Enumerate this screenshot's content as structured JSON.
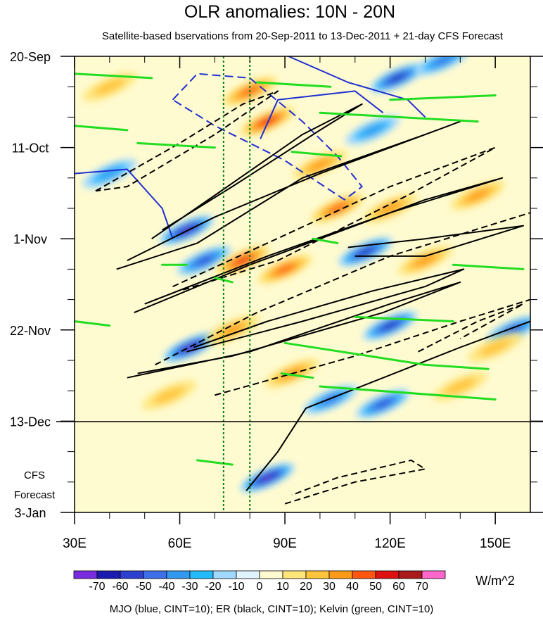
{
  "chart_data": {
    "type": "heatmap",
    "title": "OLR anomalies: 10N - 20N",
    "subtitle": "Satellite-based bservations from 20-Sep-2011 to 13-Dec-2011 + 21-day CFS Forecast",
    "xlabel": "",
    "ylabel": "",
    "x_ticks": [
      "30E",
      "60E",
      "90E",
      "120E",
      "150E"
    ],
    "x_tick_values": [
      30,
      60,
      90,
      120,
      150
    ],
    "xlim": [
      30,
      160
    ],
    "y_ticks": [
      "20-Sep",
      "11-Oct",
      "1-Nov",
      "22-Nov",
      "13-Dec",
      "3-Jan"
    ],
    "ylim": [
      "20-Sep-2011",
      "3-Jan-2012"
    ],
    "forecast_start": "13-Dec-2011",
    "forecast_label": [
      "CFS",
      "Forecast"
    ],
    "reference_longitudes": [
      72.5,
      80
    ],
    "colorbar": {
      "labels": [
        "-70",
        "-60",
        "-50",
        "-40",
        "-30",
        "-20",
        "-10",
        "0",
        "10",
        "20",
        "30",
        "40",
        "50",
        "60",
        "70"
      ],
      "colors": [
        "#7a2be0",
        "#1b1bb0",
        "#2d3fcf",
        "#3f6fe8",
        "#3399ee",
        "#22bbff",
        "#a0d8ff",
        "#dff4ff",
        "#fffbd0",
        "#ffe57a",
        "#ffc43a",
        "#ff9a16",
        "#ff5511",
        "#dd1111",
        "#aa1a1a",
        "#ff66cc"
      ],
      "units": "W/m^2"
    },
    "footer": "MJO (blue, CINT=10); ER (black, CINT=10); Kelvin (green, CINT=10)",
    "anomaly_features": [
      {
        "lon": 62,
        "date": "2011-10-30",
        "value": -70
      },
      {
        "lon": 67,
        "date": "2011-11-06",
        "value": -50
      },
      {
        "lon": 63,
        "date": "2011-11-26",
        "value": -70
      },
      {
        "lon": 85,
        "date": "2011-12-26",
        "value": -70
      },
      {
        "lon": 113,
        "date": "2011-11-04",
        "value": -60
      },
      {
        "lon": 122,
        "date": "2011-09-25",
        "value": -60
      },
      {
        "lon": 120,
        "date": "2011-11-21",
        "value": -60
      },
      {
        "lon": 118,
        "date": "2011-12-09",
        "value": -50
      },
      {
        "lon": 155,
        "date": "2011-11-22",
        "value": -50
      },
      {
        "lon": 135,
        "date": "2011-09-21",
        "value": -40
      },
      {
        "lon": 40,
        "date": "2011-10-17",
        "value": -30
      },
      {
        "lon": 115,
        "date": "2011-10-07",
        "value": -30
      },
      {
        "lon": 103,
        "date": "2011-12-08",
        "value": -40
      },
      {
        "lon": 80,
        "date": "2011-09-28",
        "value": 40
      },
      {
        "lon": 85,
        "date": "2011-10-05",
        "value": 50
      },
      {
        "lon": 78,
        "date": "2011-11-06",
        "value": 50
      },
      {
        "lon": 90,
        "date": "2011-11-08",
        "value": 40
      },
      {
        "lon": 105,
        "date": "2011-10-25",
        "value": 40
      },
      {
        "lon": 120,
        "date": "2011-10-25",
        "value": 30
      },
      {
        "lon": 130,
        "date": "2011-11-06",
        "value": 30
      },
      {
        "lon": 75,
        "date": "2011-11-22",
        "value": 30
      },
      {
        "lon": 92,
        "date": "2011-12-02",
        "value": 30
      },
      {
        "lon": 57,
        "date": "2011-12-07",
        "value": 20
      },
      {
        "lon": 100,
        "date": "2011-10-15",
        "value": 30
      },
      {
        "lon": 145,
        "date": "2011-10-22",
        "value": 30
      },
      {
        "lon": 150,
        "date": "2011-11-26",
        "value": 20
      },
      {
        "lon": 40,
        "date": "2011-09-27",
        "value": 20
      },
      {
        "lon": 140,
        "date": "2011-12-05",
        "value": 20
      }
    ],
    "contours": {
      "mjo": [
        {
          "kind": "negative",
          "points": [
            [
              58,
              "2011-09-30"
            ],
            [
              65,
              "2011-09-24"
            ],
            [
              80,
              "2011-09-25"
            ],
            [
              95,
              "2011-10-05"
            ],
            [
              105,
              "2011-10-13"
            ],
            [
              112,
              "2011-10-20"
            ],
            [
              107,
              "2011-10-23"
            ],
            [
              90,
              "2011-10-14"
            ],
            [
              70,
              "2011-10-06"
            ],
            [
              58,
              "2011-09-30"
            ]
          ]
        },
        {
          "kind": "positive",
          "points": [
            [
              30,
              "2011-10-17"
            ],
            [
              45,
              "2011-10-16"
            ],
            [
              55,
              "2011-10-25"
            ],
            [
              58,
              "2011-11-01"
            ]
          ]
        },
        {
          "kind": "positive",
          "points": [
            [
              91,
              "2011-09-20"
            ],
            [
              108,
              "2011-09-26"
            ],
            [
              125,
              "2011-09-30"
            ],
            [
              130,
              "2011-10-04"
            ]
          ]
        },
        {
          "kind": "positive",
          "points": [
            [
              83,
              "2011-10-09"
            ],
            [
              88,
              "2011-09-30"
            ],
            [
              110,
              "2011-09-28"
            ],
            [
              118,
              "2011-10-03"
            ]
          ]
        }
      ],
      "er": [
        {
          "kind": "positive",
          "points": [
            [
              52,
              "2011-11-01"
            ],
            [
              70,
              "2011-10-22"
            ],
            [
              95,
              "2011-10-08"
            ],
            [
              112,
              "2011-10-01"
            ],
            [
              100,
              "2011-10-07"
            ],
            [
              75,
              "2011-10-20"
            ],
            [
              55,
              "2011-10-30"
            ]
          ]
        },
        {
          "kind": "positive",
          "points": [
            [
              42,
              "2011-11-08"
            ],
            [
              65,
              "2011-11-02"
            ],
            [
              95,
              "2011-10-18"
            ],
            [
              130,
              "2011-10-08"
            ],
            [
              140,
              "2011-10-05"
            ],
            [
              100,
              "2011-10-17"
            ],
            [
              70,
              "2011-10-27"
            ],
            [
              45,
              "2011-11-06"
            ]
          ]
        },
        {
          "kind": "positive",
          "points": [
            [
              47,
              "2011-11-18"
            ],
            [
              80,
              "2011-11-07"
            ],
            [
              130,
              "2011-10-23"
            ],
            [
              152,
              "2011-10-18"
            ],
            [
              120,
              "2011-10-26"
            ],
            [
              85,
              "2011-11-05"
            ],
            [
              50,
              "2011-11-16"
            ]
          ]
        },
        {
          "kind": "positive",
          "points": [
            [
              62,
              "2011-11-27"
            ],
            [
              95,
              "2011-11-20"
            ],
            [
              130,
              "2011-11-12"
            ],
            [
              141,
              "2011-11-08"
            ],
            [
              115,
              "2011-11-13"
            ],
            [
              85,
              "2011-11-20"
            ],
            [
              64,
              "2011-11-26"
            ]
          ]
        },
        {
          "kind": "positive",
          "points": [
            [
              45,
              "2011-12-03"
            ],
            [
              80,
              "2011-11-27"
            ],
            [
              120,
              "2011-11-16"
            ],
            [
              140,
              "2011-11-11"
            ],
            [
              118,
              "2011-11-18"
            ],
            [
              75,
              "2011-11-28"
            ],
            [
              48,
              "2011-12-02"
            ]
          ]
        },
        {
          "kind": "positive",
          "points": [
            [
              79,
              "2011-12-29"
            ],
            [
              88,
              "2011-12-20"
            ],
            [
              96,
              "2011-12-10"
            ],
            [
              140,
              "2011-11-26"
            ],
            [
              160,
              "2011-11-20"
            ]
          ]
        },
        {
          "kind": "positive",
          "points": [
            [
              108,
              "2011-11-03"
            ],
            [
              130,
              "2011-11-01"
            ],
            [
              158,
              "2011-10-29"
            ],
            [
              130,
              "2011-11-05"
            ],
            [
              110,
              "2011-11-05"
            ]
          ]
        },
        {
          "kind": "negative",
          "points": [
            [
              36,
              "2011-10-21"
            ],
            [
              60,
              "2011-10-10"
            ],
            [
              78,
              "2011-10-01"
            ],
            [
              88,
              "2011-09-28"
            ],
            [
              70,
              "2011-10-08"
            ],
            [
              45,
              "2011-10-20"
            ],
            [
              36,
              "2011-10-21"
            ]
          ]
        },
        {
          "kind": "negative",
          "points": [
            [
              58,
              "2011-11-12"
            ],
            [
              85,
              "2011-11-02"
            ],
            [
              120,
              "2011-10-20"
            ],
            [
              150,
              "2011-10-11"
            ],
            [
              125,
              "2011-10-22"
            ],
            [
              88,
              "2011-11-06"
            ],
            [
              60,
              "2011-11-13"
            ]
          ]
        },
        {
          "kind": "negative",
          "points": [
            [
              53,
              "2011-11-30"
            ],
            [
              82,
              "2011-11-18"
            ],
            [
              120,
              "2011-11-05"
            ],
            [
              160,
              "2011-10-26"
            ]
          ]
        },
        {
          "kind": "negative",
          "points": [
            [
              70,
              "2011-12-07"
            ],
            [
              110,
              "2011-11-28"
            ],
            [
              140,
              "2011-11-20"
            ],
            [
              160,
              "2011-11-15"
            ]
          ]
        },
        {
          "kind": "negative",
          "points": [
            [
              90,
              "2012-01-01"
            ],
            [
              110,
              "2011-12-27"
            ],
            [
              130,
              "2011-12-24"
            ],
            [
              126,
              "2011-12-22"
            ],
            [
              105,
              "2011-12-26"
            ],
            [
              92,
              "2011-12-30"
            ]
          ]
        },
        {
          "kind": "negative",
          "points": [
            [
              128,
              "2011-11-27"
            ],
            [
              145,
              "2011-11-20"
            ],
            [
              158,
              "2011-11-16"
            ],
            [
              140,
              "2011-11-24"
            ]
          ]
        }
      ],
      "kelvin": [
        {
          "points": [
            [
              30,
              "2011-09-24"
            ],
            [
              52,
              "2011-09-25"
            ]
          ]
        },
        {
          "points": [
            [
              48,
              "2011-10-10"
            ],
            [
              70,
              "2011-10-11"
            ]
          ]
        },
        {
          "points": [
            [
              30,
              "2011-10-06"
            ],
            [
              45,
              "2011-10-07"
            ]
          ]
        },
        {
          "points": [
            [
              100,
              "2011-10-03"
            ],
            [
              145,
              "2011-10-05"
            ]
          ]
        },
        {
          "points": [
            [
              120,
              "2011-09-30"
            ],
            [
              150,
              "2011-09-29"
            ]
          ]
        },
        {
          "points": [
            [
              92,
              "2011-10-12"
            ],
            [
              106,
              "2011-10-13"
            ]
          ]
        },
        {
          "points": [
            [
              55,
              "2011-11-07"
            ],
            [
              62,
              "2011-11-07"
            ]
          ]
        },
        {
          "points": [
            [
              70,
              "2011-11-10"
            ],
            [
              75,
              "2011-11-11"
            ]
          ]
        },
        {
          "points": [
            [
              98,
              "2011-11-01"
            ],
            [
              105,
              "2011-11-02"
            ]
          ]
        },
        {
          "points": [
            [
              138,
              "2011-11-07"
            ],
            [
              158,
              "2011-11-08"
            ]
          ]
        },
        {
          "points": [
            [
              110,
              "2011-11-19"
            ],
            [
              138,
              "2011-11-20"
            ]
          ]
        },
        {
          "points": [
            [
              90,
              "2011-11-25"
            ],
            [
              130,
              "2011-11-30"
            ],
            [
              148,
              "2011-12-01"
            ]
          ]
        },
        {
          "points": [
            [
              100,
              "2011-12-05"
            ],
            [
              150,
              "2011-12-08"
            ]
          ]
        },
        {
          "points": [
            [
              89,
              "2011-12-02"
            ],
            [
              98,
              "2011-12-03"
            ]
          ]
        },
        {
          "points": [
            [
              30,
              "2011-11-20"
            ],
            [
              40,
              "2011-11-21"
            ]
          ]
        },
        {
          "points": [
            [
              65,
              "2011-12-22"
            ],
            [
              75,
              "2011-12-23"
            ]
          ]
        },
        {
          "points": [
            [
              82,
              "2011-09-26"
            ],
            [
              103,
              "2011-09-27"
            ]
          ]
        }
      ]
    }
  }
}
